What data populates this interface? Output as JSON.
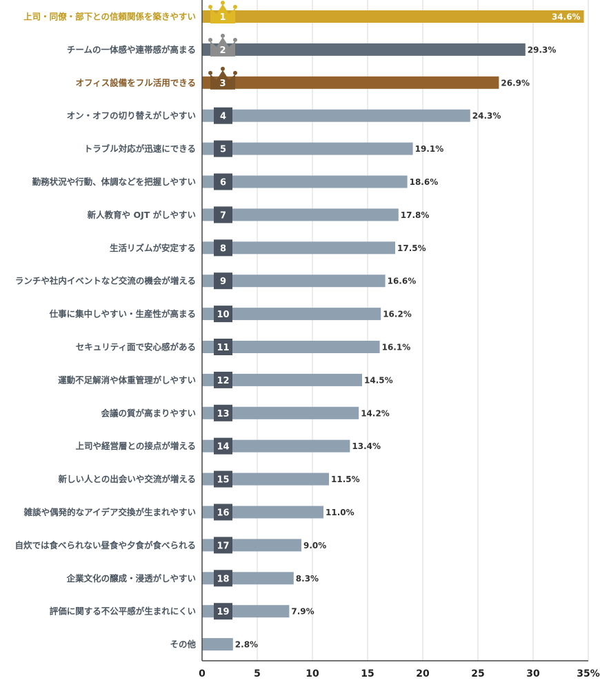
{
  "chart_data": {
    "type": "bar",
    "orientation": "horizontal",
    "categories": [
      "上司・同僚・部下との信頼関係を築きやすい",
      "チームの一体感や連帯感が高まる",
      "オフィス設備をフル活用できる",
      "オン・オフの切り替えがしやすい",
      "トラブル対応が迅速にできる",
      "勤務状況や行動、体調などを把握しやすい",
      "新人教育や OJT がしやすい",
      "生活リズムが安定する",
      "ランチや社内イベントなど交流の機会が増える",
      "仕事に集中しやすい・生産性が高まる",
      "セキュリティ面で安心感がある",
      "運動不足解消や体重管理がしやすい",
      "会議の質が高まりやすい",
      "上司や経営層との接点が増える",
      "新しい人との出会いや交流が増える",
      "雑談や偶発的なアイデア交換が生まれやすい",
      "自炊では食べられない昼食や夕食が食べられる",
      "企業文化の醸成・浸透がしやすい",
      "評価に関する不公平感が生まれにくい",
      "その他"
    ],
    "values": [
      34.6,
      29.3,
      26.9,
      24.3,
      19.1,
      18.6,
      17.8,
      17.5,
      16.6,
      16.2,
      16.1,
      14.5,
      14.2,
      13.4,
      11.5,
      11.0,
      9.0,
      8.3,
      7.9,
      2.8
    ],
    "value_labels": [
      "34.6%",
      "29.3%",
      "26.9%",
      "24.3%",
      "19.1%",
      "18.6%",
      "17.8%",
      "17.5%",
      "16.6%",
      "16.2%",
      "16.1%",
      "14.5%",
      "14.2%",
      "13.4%",
      "11.5%",
      "11.0%",
      "9.0%",
      "8.3%",
      "7.9%",
      "2.8%"
    ],
    "ranks": [
      "1",
      "2",
      "3",
      "4",
      "5",
      "6",
      "7",
      "8",
      "9",
      "10",
      "11",
      "12",
      "13",
      "14",
      "15",
      "16",
      "17",
      "18",
      "19"
    ],
    "xlim": [
      0,
      35
    ],
    "xticks": [
      "0",
      "5",
      "10",
      "15",
      "20",
      "25",
      "30",
      "35%"
    ],
    "xtick_values": [
      0,
      5,
      10,
      15,
      20,
      25,
      30,
      35
    ],
    "grid": true,
    "colors": {
      "gold_bar": "#cfa22a",
      "gold_crown": "#dfb826",
      "gold_text": "#c29a1e",
      "silver_bar": "#5f6b78",
      "silver_crown": "#8c8c8c",
      "bronze_bar": "#93612c",
      "bronze_crown": "#7a5428",
      "bronze_text": "#8a5a26",
      "default_bar": "#8fa1b1",
      "badge": "#4b5360",
      "label_text": "#4a5560"
    }
  }
}
